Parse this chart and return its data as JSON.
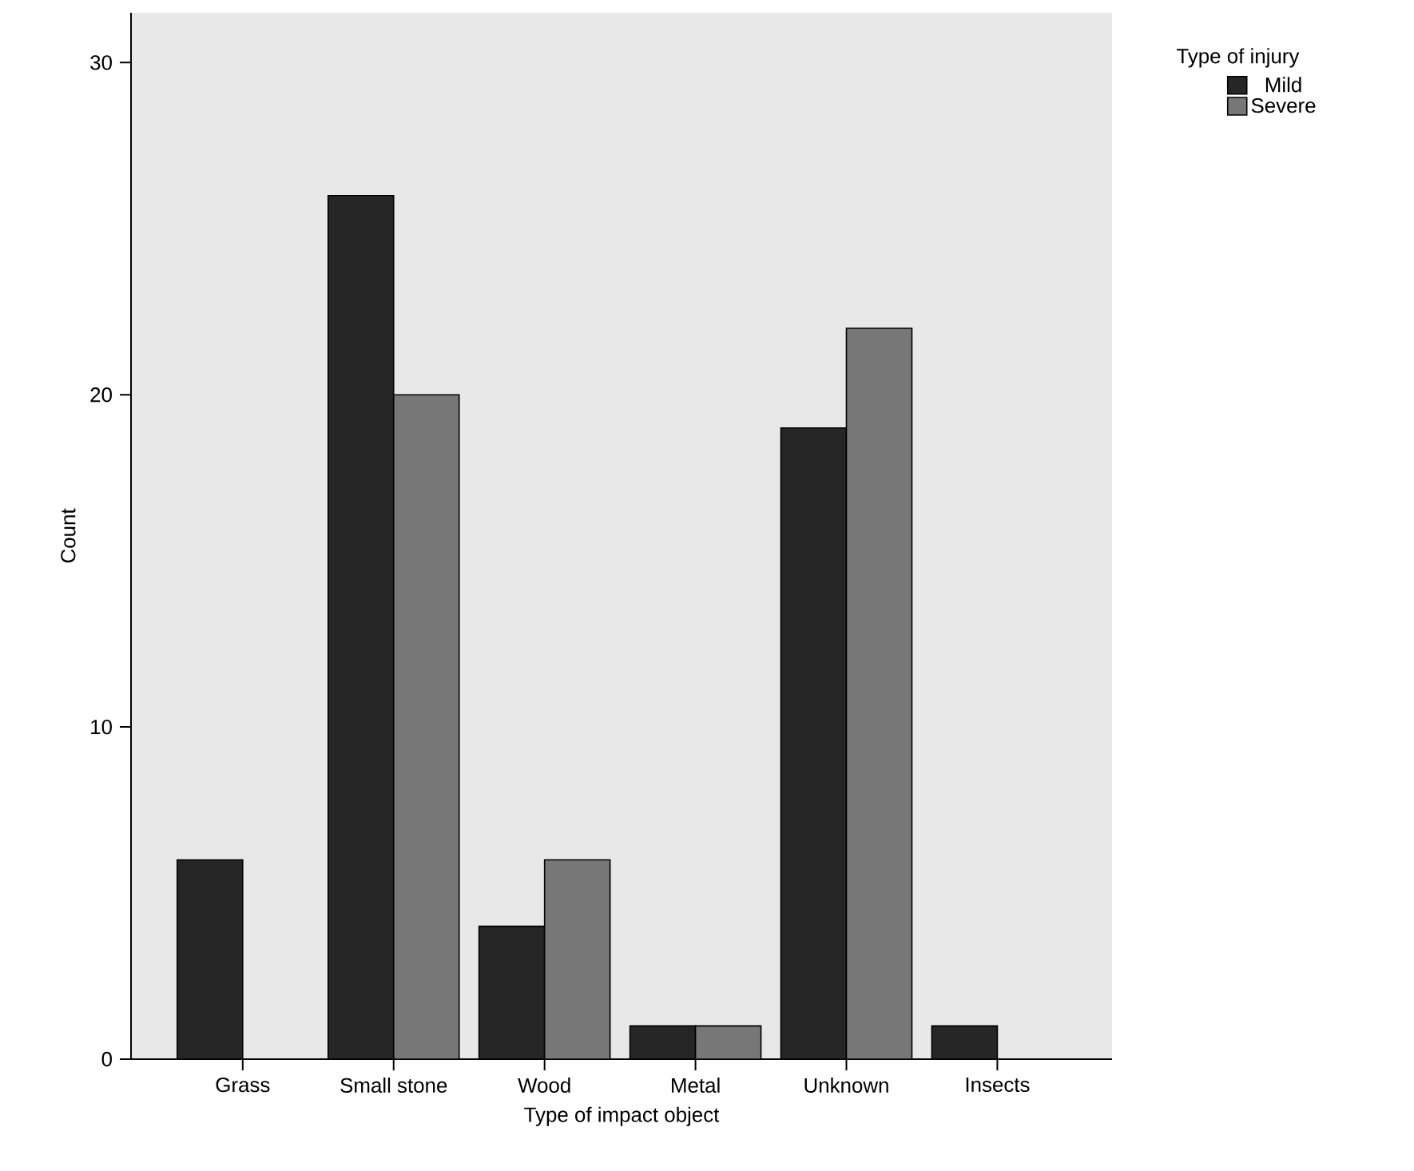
{
  "chart_data": {
    "type": "bar",
    "xlabel": "Type of impact object",
    "ylabel": "Count",
    "legend_title": "Type of injury",
    "legend": "top right",
    "categories": [
      "Grass",
      "Small stone",
      "Wood",
      "Metal",
      "Unknown",
      "Insects"
    ],
    "series": [
      {
        "name": "Mild",
        "color": "#262626",
        "values": [
          6,
          26,
          4,
          1,
          19,
          1
        ]
      },
      {
        "name": "Severe",
        "color": "#777777",
        "values": [
          null,
          20,
          6,
          1,
          22,
          null
        ]
      }
    ],
    "ylim": [
      0,
      31.5
    ],
    "yticks": [
      0,
      10,
      20,
      30
    ],
    "grid": false
  }
}
